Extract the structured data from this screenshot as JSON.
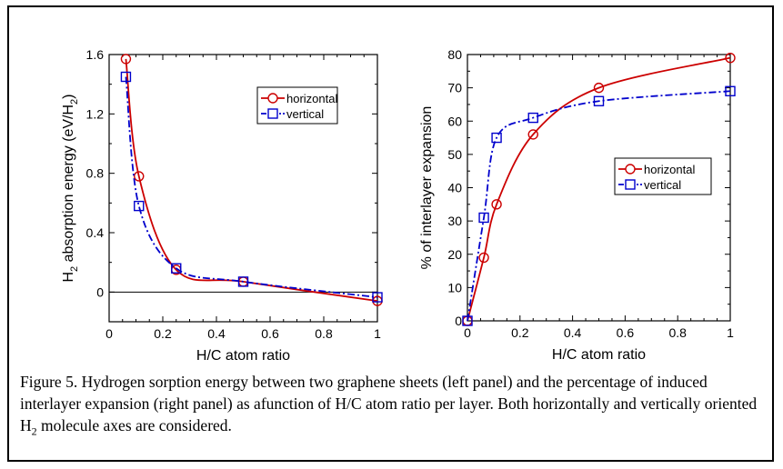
{
  "chart_data": [
    {
      "type": "line",
      "xlabel": "H/C atom ratio",
      "ylabel": "H",
      "ylabel_sub": "2",
      "ylabel_rest": " absorption energy (eV/H",
      "ylabel_sub2": "2",
      "ylabel_end": ")",
      "xlim": [
        0,
        1
      ],
      "ylim": [
        -0.2,
        1.6
      ],
      "xticks": [
        0,
        0.2,
        0.4,
        0.6,
        0.8,
        1
      ],
      "xtick_labels": [
        "0",
        "0.2",
        "0.4",
        "0.6",
        "0.8",
        "1"
      ],
      "yticks": [
        0,
        0.4,
        0.8,
        1.2,
        1.6
      ],
      "ytick_labels": [
        "0",
        "0.4",
        "0.8",
        "1.2",
        "1.6"
      ],
      "zero_line": true,
      "legend_position": "top-right",
      "series": [
        {
          "name": "horizontal",
          "color": "#cc0000",
          "marker": "circle",
          "line": "solid",
          "x": [
            0.0625,
            0.111,
            0.25,
            0.5,
            1.0
          ],
          "y": [
            1.57,
            0.78,
            0.15,
            0.07,
            -0.06
          ]
        },
        {
          "name": "vertical",
          "color": "#0000cc",
          "marker": "square",
          "line": "dash-dot",
          "x": [
            0.0625,
            0.111,
            0.25,
            0.5,
            1.0
          ],
          "y": [
            1.45,
            0.58,
            0.16,
            0.07,
            -0.035
          ]
        }
      ]
    },
    {
      "type": "line",
      "xlabel": "H/C atom ratio",
      "ylabel": "% of interlayer expansion",
      "xlim": [
        0,
        1
      ],
      "ylim": [
        0,
        80
      ],
      "xticks": [
        0,
        0.2,
        0.4,
        0.6,
        0.8,
        1
      ],
      "xtick_labels": [
        "0",
        "0.2",
        "0.4",
        "0.6",
        "0.8",
        "1"
      ],
      "yticks": [
        0,
        10,
        20,
        30,
        40,
        50,
        60,
        70,
        80
      ],
      "ytick_labels": [
        "0",
        "10",
        "20",
        "30",
        "40",
        "50",
        "60",
        "70",
        "80"
      ],
      "legend_position": "right",
      "series": [
        {
          "name": "horizontal",
          "color": "#cc0000",
          "marker": "circle",
          "line": "solid",
          "x": [
            0,
            0.0625,
            0.111,
            0.25,
            0.5,
            1.0
          ],
          "y": [
            0,
            19,
            35,
            56,
            70,
            79
          ]
        },
        {
          "name": "vertical",
          "color": "#0000cc",
          "marker": "square",
          "line": "dash-dot",
          "x": [
            0,
            0.0625,
            0.111,
            0.25,
            0.5,
            1.0
          ],
          "y": [
            0,
            31,
            55,
            61,
            66,
            69
          ]
        }
      ]
    }
  ],
  "caption": {
    "text": "Figure 5. Hydrogen sorption energy between two graphene sheets (left panel) and the percentage of induced interlayer expansion (right panel) as afunction of H/C atom ratio per layer. Both horizontally and vertically oriented H",
    "sub": "2",
    "text_end": " molecule axes are considered."
  }
}
